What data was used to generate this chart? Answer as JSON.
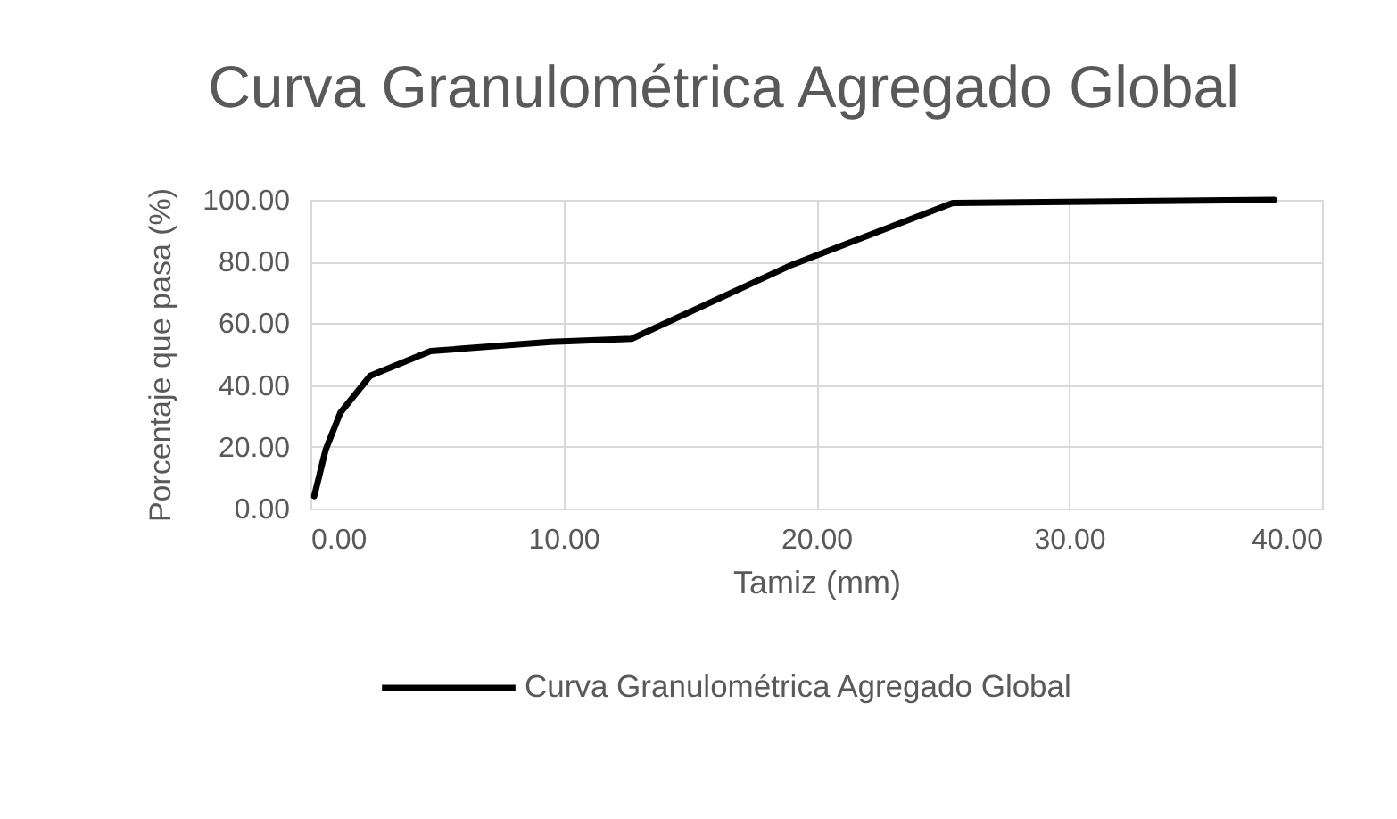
{
  "chart_data": {
    "type": "line",
    "title": "Curva Granulométrica Agregado Global",
    "xlabel": "Tamiz (mm)",
    "ylabel": "Porcentaje que pasa (%)",
    "x": [
      0.15,
      0.6,
      1.18,
      2.36,
      4.75,
      9.5,
      12.7,
      19.05,
      25.4,
      38.1
    ],
    "series": [
      {
        "name": "Curva Granulométrica Agregado Global",
        "color": "#000000",
        "values": [
          4,
          19,
          31,
          43,
          51,
          54,
          55,
          79,
          99,
          100
        ]
      }
    ],
    "xlim": [
      0,
      40
    ],
    "ylim": [
      0,
      100
    ],
    "xticks": [
      {
        "value": 0,
        "label": "0.00"
      },
      {
        "value": 10,
        "label": "10.00"
      },
      {
        "value": 20,
        "label": "20.00"
      },
      {
        "value": 30,
        "label": "30.00"
      },
      {
        "value": 40,
        "label": "40.00"
      }
    ],
    "yticks": [
      {
        "value": 0,
        "label": "0.00"
      },
      {
        "value": 20,
        "label": "20.00"
      },
      {
        "value": 40,
        "label": "40.00"
      },
      {
        "value": 60,
        "label": "60.00"
      },
      {
        "value": 80,
        "label": "80.00"
      },
      {
        "value": 100,
        "label": "100.00"
      }
    ],
    "grid": true,
    "legend": "bottom",
    "marker": "none",
    "line_style": "solid"
  }
}
